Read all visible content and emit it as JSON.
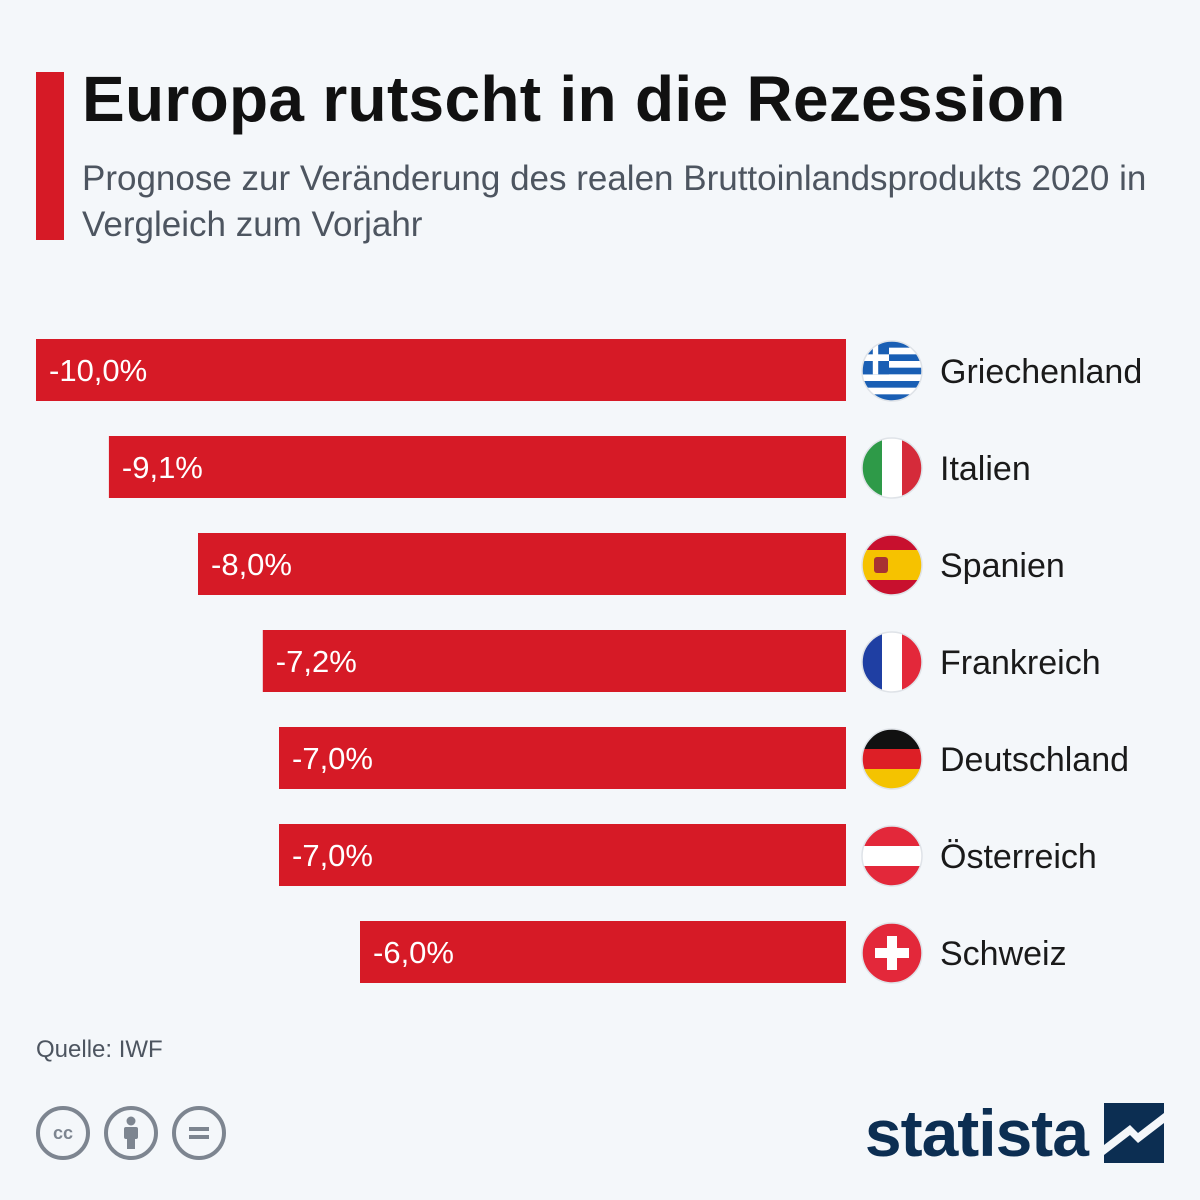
{
  "title": "Europa rutscht in die Rezession",
  "subtitle": "Prognose zur Veränderung des realen Bruttoinlandsprodukts 2020 in Vergleich zum Vorjahr",
  "source": "Quelle: IWF",
  "logo": {
    "text": "statista",
    "icon": "statista-mark-icon"
  },
  "license_icons": [
    "cc-icon",
    "by-attribution-icon",
    "no-derivatives-icon"
  ],
  "colors": {
    "bar": "#d61a26",
    "title_accent": "#d61a26",
    "logo": "#0c2e52"
  },
  "chart_data": {
    "type": "bar",
    "orientation": "horizontal",
    "categories": [
      "Griechenland",
      "Italien",
      "Spanien",
      "Frankreich",
      "Deutschland",
      "Österreich",
      "Schweiz"
    ],
    "values": [
      -10.0,
      -9.1,
      -8.0,
      -7.2,
      -7.0,
      -7.0,
      -6.0
    ],
    "value_labels": [
      "-10,0%",
      "-9,1%",
      "-8,0%",
      "-7,2%",
      "-7,0%",
      "-7,0%",
      "-6,0%"
    ],
    "flags": [
      "flag-greece-icon",
      "flag-italy-icon",
      "flag-spain-icon",
      "flag-france-icon",
      "flag-germany-icon",
      "flag-austria-icon",
      "flag-switzerland-icon"
    ],
    "xlim": [
      -10,
      0
    ],
    "unit": "%",
    "grid": false,
    "legend": "none"
  }
}
